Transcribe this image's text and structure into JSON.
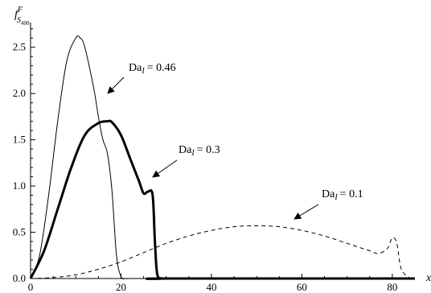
{
  "chart_data": {
    "type": "line",
    "ylabel": "f",
    "ylabel_superscript": "F",
    "ylabel_subscript": "S",
    "ylabel_subscript_index": "400",
    "xlabel": "x",
    "xlim": [
      0,
      85
    ],
    "ylim": [
      0,
      2.75
    ],
    "x_ticks": [
      0,
      20,
      40,
      60,
      80
    ],
    "y_ticks": [
      0.0,
      0.5,
      1.0,
      1.5,
      2.0,
      2.5
    ],
    "x_tick_labels": [
      "0",
      "20",
      "40",
      "60",
      "80"
    ],
    "y_tick_labels": [
      "0.0",
      "0.5",
      "1.0",
      "1.5",
      "2.0",
      "2.5"
    ],
    "grid": false,
    "series": [
      {
        "name": "Da",
        "param_label": "Da",
        "param_subscript": "I",
        "param_value_text": "= 0.46",
        "style": "thin",
        "x": [
          0,
          2,
          4,
          6,
          8,
          10,
          11,
          12,
          14,
          15,
          16,
          17,
          18,
          19,
          20,
          21,
          22,
          25,
          85
        ],
        "y": [
          0,
          0.25,
          0.9,
          1.7,
          2.35,
          2.6,
          2.6,
          2.5,
          2.05,
          1.75,
          1.5,
          1.35,
          0.95,
          0.25,
          0.02,
          0,
          0,
          0,
          0
        ]
      },
      {
        "name": "Da",
        "param_label": "Da",
        "param_subscript": "I",
        "param_value_text": "= 0.3",
        "style": "thick",
        "x": [
          0,
          3,
          6,
          9,
          12,
          15,
          17,
          18,
          20,
          22,
          24,
          25,
          26,
          27,
          27.5,
          28,
          29,
          30,
          85
        ],
        "y": [
          0,
          0.3,
          0.75,
          1.2,
          1.55,
          1.68,
          1.7,
          1.69,
          1.55,
          1.3,
          1.05,
          0.92,
          0.94,
          0.9,
          0.4,
          0.05,
          0,
          0,
          0
        ]
      },
      {
        "name": "Da",
        "param_label": "Da",
        "param_subscript": "I",
        "param_value_text": "= 0.1",
        "style": "dashed",
        "x": [
          0,
          5,
          10,
          15,
          20,
          25,
          30,
          35,
          40,
          45,
          50,
          55,
          60,
          65,
          70,
          75,
          77,
          79,
          80,
          81,
          82,
          84
        ],
        "y": [
          0,
          0.01,
          0.04,
          0.1,
          0.18,
          0.28,
          0.38,
          0.46,
          0.52,
          0.56,
          0.57,
          0.56,
          0.52,
          0.46,
          0.38,
          0.3,
          0.27,
          0.33,
          0.44,
          0.38,
          0.1,
          0
        ]
      }
    ]
  }
}
